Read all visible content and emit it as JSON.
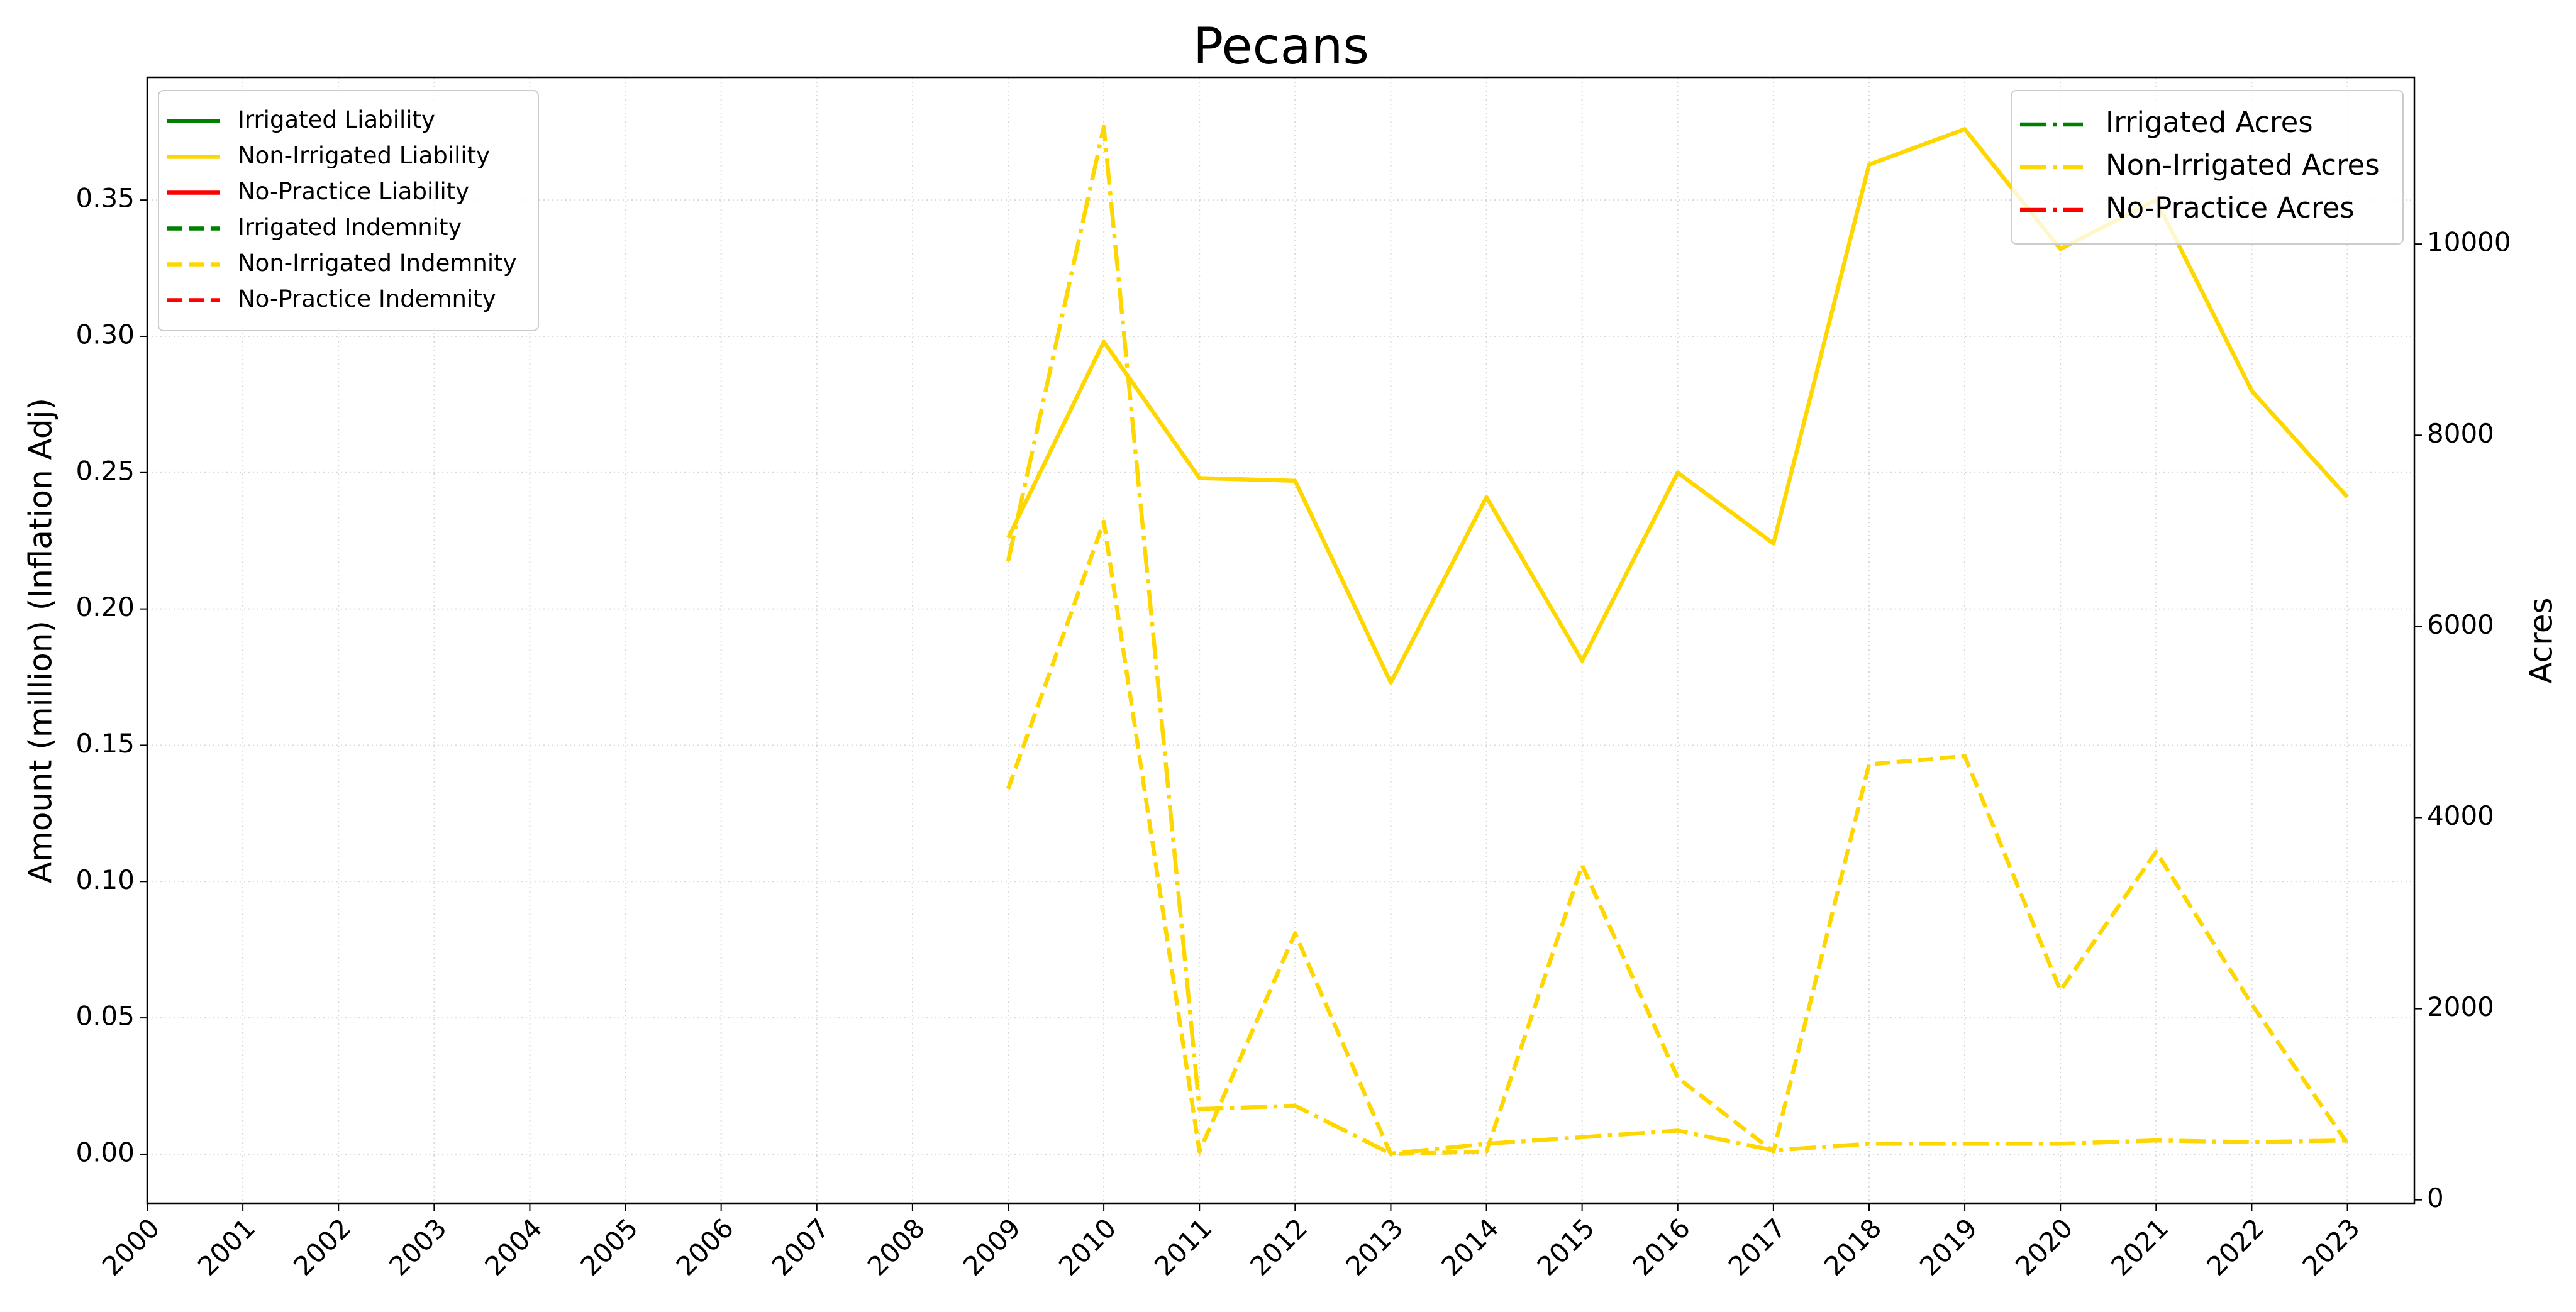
{
  "chart_data": {
    "type": "line",
    "title": "Pecans",
    "y_label": "Amount (million) (Inflation Adj)",
    "y2_label": "Acres",
    "x": [
      2000,
      2001,
      2002,
      2003,
      2004,
      2005,
      2006,
      2007,
      2008,
      2009,
      2010,
      2011,
      2012,
      2013,
      2014,
      2015,
      2016,
      2017,
      2018,
      2019,
      2020,
      2021,
      2022,
      2023
    ],
    "xlim": [
      2000,
      2023.7
    ],
    "xticks": [
      2000,
      2001,
      2002,
      2003,
      2004,
      2005,
      2006,
      2007,
      2008,
      2009,
      2010,
      2011,
      2012,
      2013,
      2014,
      2015,
      2016,
      2017,
      2018,
      2019,
      2020,
      2021,
      2022,
      2023
    ],
    "ylim": [
      -0.018,
      0.395
    ],
    "yticks": [
      {
        "value": 0,
        "label": "0.00"
      },
      {
        "value": 0.05,
        "label": "0.05"
      },
      {
        "value": 0.1,
        "label": "0.10"
      },
      {
        "value": 0.15,
        "label": "0.15"
      },
      {
        "value": 0.2,
        "label": "0.20"
      },
      {
        "value": 0.25,
        "label": "0.25"
      },
      {
        "value": 0.3,
        "label": "0.30"
      },
      {
        "value": 0.35,
        "label": "0.35"
      }
    ],
    "y2lim": [
      -35,
      11744
    ],
    "y2ticks": [
      0,
      2000,
      4000,
      6000,
      8000,
      10000
    ],
    "grid": true,
    "legend": "upper left",
    "legend2": "upper right",
    "series": [
      {
        "name": "Irrigated Liability",
        "color": "#008000",
        "linestyle": "solid",
        "axis": "y",
        "values": [
          null,
          null,
          null,
          null,
          null,
          null,
          null,
          null,
          null,
          null,
          null,
          null,
          null,
          null,
          null,
          null,
          null,
          null,
          null,
          null,
          null,
          null,
          null,
          null
        ]
      },
      {
        "name": "Non-Irrigated Liability",
        "color": "#FFD700",
        "linestyle": "solid",
        "axis": "y",
        "values": [
          null,
          null,
          null,
          null,
          null,
          null,
          null,
          null,
          null,
          0.226,
          0.298,
          0.248,
          0.247,
          0.173,
          0.241,
          0.181,
          0.25,
          0.224,
          0.363,
          0.376,
          0.332,
          0.35,
          0.28,
          0.241
        ]
      },
      {
        "name": "No-Practice Liability",
        "color": "#FF0000",
        "linestyle": "solid",
        "axis": "y",
        "values": [
          null,
          null,
          null,
          null,
          null,
          null,
          null,
          null,
          null,
          null,
          null,
          null,
          null,
          null,
          null,
          null,
          null,
          null,
          null,
          null,
          null,
          null,
          null,
          null
        ]
      },
      {
        "name": "Irrigated Indemnity",
        "color": "#008000",
        "linestyle": "dashed",
        "axis": "y",
        "values": [
          null,
          null,
          null,
          null,
          null,
          null,
          null,
          null,
          null,
          null,
          null,
          null,
          null,
          null,
          null,
          null,
          null,
          null,
          null,
          null,
          null,
          null,
          null,
          null
        ]
      },
      {
        "name": "Non-Irrigated Indemnity",
        "color": "#FFD700",
        "linestyle": "dashed",
        "axis": "y",
        "values": [
          null,
          null,
          null,
          null,
          null,
          null,
          null,
          null,
          null,
          0.134,
          0.232,
          0.001,
          0.081,
          0,
          0.001,
          0.106,
          0.028,
          0.001,
          0.143,
          0.146,
          0.06,
          0.111,
          0.055,
          0.004
        ]
      },
      {
        "name": "No-Practice Indemnity",
        "color": "#FF0000",
        "linestyle": "dashed",
        "axis": "y",
        "values": [
          null,
          null,
          null,
          null,
          null,
          null,
          null,
          null,
          null,
          null,
          null,
          null,
          null,
          null,
          null,
          null,
          null,
          null,
          null,
          null,
          null,
          null,
          null,
          null
        ]
      },
      {
        "name": "Irrigated Acres",
        "color": "#008000",
        "linestyle": "dashdot",
        "axis": "y2",
        "values": [
          null,
          null,
          null,
          null,
          null,
          null,
          null,
          null,
          null,
          null,
          null,
          null,
          null,
          null,
          null,
          null,
          null,
          null,
          null,
          null,
          null,
          null,
          null,
          null
        ]
      },
      {
        "name": "Non-Irrigated Acres",
        "color": "#FFD700",
        "linestyle": "dashdot",
        "axis": "y2",
        "values": [
          null,
          null,
          null,
          null,
          null,
          null,
          null,
          null,
          null,
          6684,
          11226,
          950,
          985,
          484,
          587,
          656,
          725,
          518,
          587,
          587,
          587,
          622,
          605,
          622
        ]
      },
      {
        "name": "No-Practice Acres",
        "color": "#FF0000",
        "linestyle": "dashdot",
        "axis": "y2",
        "values": [
          null,
          null,
          null,
          null,
          null,
          null,
          null,
          null,
          null,
          null,
          null,
          null,
          null,
          null,
          null,
          null,
          null,
          null,
          null,
          null,
          null,
          null,
          null,
          null
        ]
      }
    ]
  }
}
